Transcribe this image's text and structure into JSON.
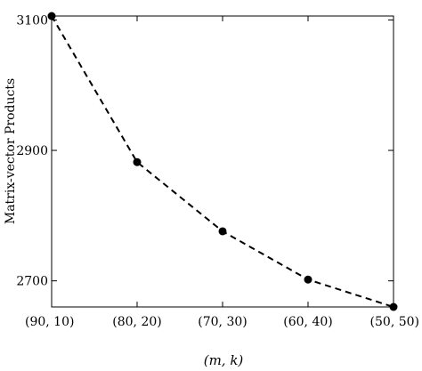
{
  "chart_data": {
    "type": "line",
    "title": "",
    "xlabel": "(m, k)",
    "ylabel": "Matrix-vector Products",
    "categories": [
      "(90, 10)",
      "(80, 20)",
      "(70, 30)",
      "(60, 40)",
      "(50, 50)"
    ],
    "series": [
      {
        "values": [
          3106,
          2882,
          2776,
          2702,
          2660
        ],
        "style": "dashed",
        "marker": "circle",
        "color": "#000000"
      }
    ],
    "yticks": [
      2700,
      2900,
      3100
    ],
    "ylim": [
      2660,
      3106
    ],
    "grid": false,
    "legend": "none"
  }
}
